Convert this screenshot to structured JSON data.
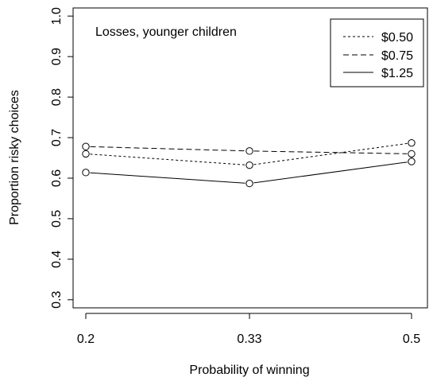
{
  "chart_data": {
    "type": "line",
    "annotation": "Losses, younger children",
    "xlabel": "Probability of winning",
    "ylabel": "Proportion risky choices",
    "x": [
      "0.2",
      "0.33",
      "0.5"
    ],
    "ylim": [
      0.28,
      1.02
    ],
    "yticks": [
      "0.3",
      "0.4",
      "0.5",
      "0.6",
      "0.7",
      "0.8",
      "0.9",
      "1.0"
    ],
    "grid": false,
    "legend_position": "top-right",
    "marker": "open-circle",
    "series": [
      {
        "name": "$0.50",
        "dash": "dotted",
        "values": [
          0.66,
          0.632,
          0.687
        ]
      },
      {
        "name": "$0.75",
        "dash": "dashed",
        "values": [
          0.678,
          0.667,
          0.66
        ]
      },
      {
        "name": "$1.25",
        "dash": "solid",
        "values": [
          0.614,
          0.587,
          0.641
        ]
      }
    ]
  }
}
